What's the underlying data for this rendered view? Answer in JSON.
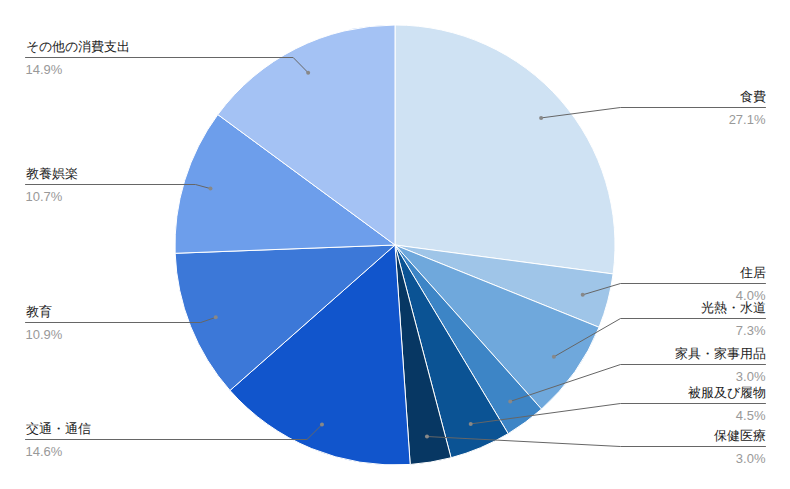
{
  "chart_data": {
    "type": "pie",
    "categories": [
      "食費",
      "住居",
      "光熱・水道",
      "家具・家事用品",
      "被服及び履物",
      "保健医療",
      "交通・通信",
      "教育",
      "教養娯楽",
      "その他の消費支出"
    ],
    "values": [
      27.1,
      4.0,
      7.3,
      3.0,
      4.5,
      3.0,
      14.6,
      10.9,
      10.7,
      14.9
    ],
    "value_labels": [
      "27.1%",
      "4.0%",
      "7.3%",
      "3.0%",
      "4.5%",
      "3.0%",
      "14.6%",
      "10.9%",
      "10.7%",
      "14.9%"
    ],
    "colors": [
      "#cfe2f3",
      "#9fc5e8",
      "#6fa8dc",
      "#3d85c6",
      "#0b5394",
      "#073763",
      "#1155cc",
      "#3c78d8",
      "#6d9eeb",
      "#a4c2f4"
    ],
    "data_labels": true
  }
}
